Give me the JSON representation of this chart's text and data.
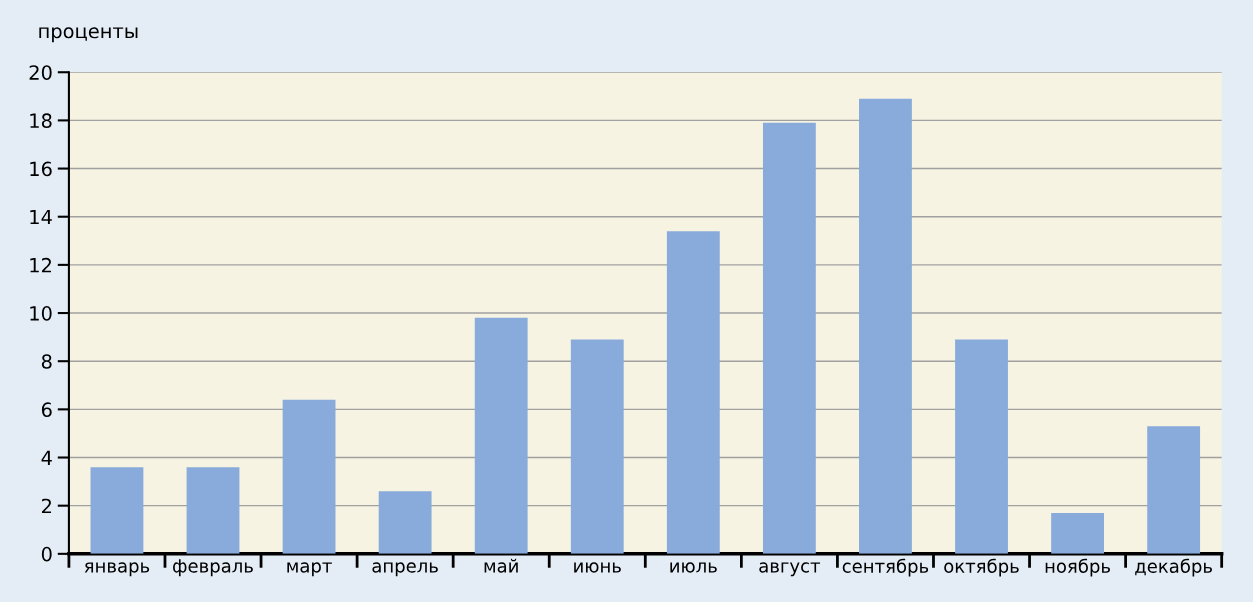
{
  "chart_data": {
    "type": "bar",
    "ylabel": "проценты",
    "categories": [
      "январь",
      "февраль",
      "март",
      "апрель",
      "май",
      "июнь",
      "июль",
      "август",
      "сентябрь",
      "октябрь",
      "ноябрь",
      "декабрь"
    ],
    "values": [
      3.6,
      3.6,
      6.4,
      2.6,
      9.8,
      8.9,
      13.4,
      17.9,
      18.9,
      8.9,
      1.7,
      5.3
    ],
    "color": "#88abdb",
    "ylim": [
      0,
      20
    ],
    "yticks": [
      0,
      2,
      4,
      6,
      8,
      10,
      12,
      14,
      16,
      18,
      20
    ],
    "grid": "y"
  }
}
